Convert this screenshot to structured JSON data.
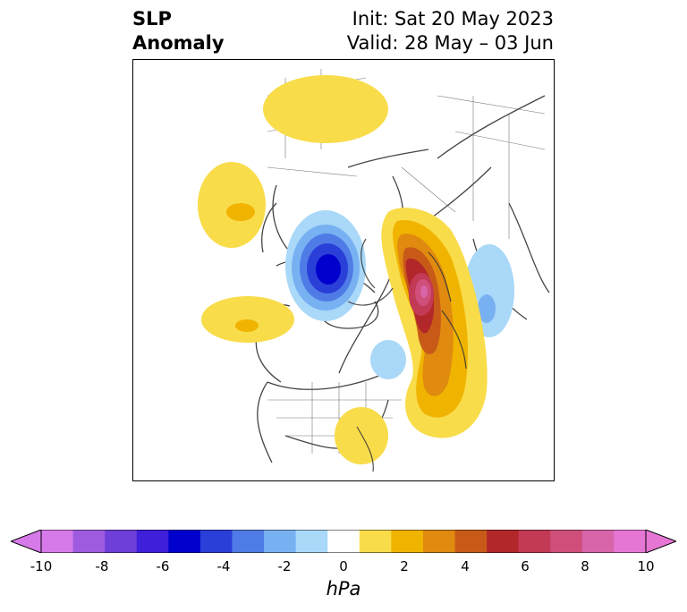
{
  "title": {
    "left_line1": "SLP",
    "left_line2": "Anomaly",
    "right_line1": "Init: Sat 20 May 2023",
    "right_line2": "Valid: 28 May – 03 Jun"
  },
  "colorbar": {
    "unit": "hPa",
    "ticks": [
      "-10",
      "-8",
      "-6",
      "-4",
      "-2",
      "0",
      "2",
      "4",
      "6",
      "8",
      "10"
    ],
    "colors": [
      "#d77ae9",
      "#9e5be0",
      "#6f3fd9",
      "#3f1fd9",
      "#0000cc",
      "#2a3fd8",
      "#4f7be6",
      "#78b1f2",
      "#a9d8f8",
      "#ffffff",
      "#f9dc4a",
      "#f0b400",
      "#e08a10",
      "#c85a18",
      "#b2282a",
      "#c23a55",
      "#cf4f7a",
      "#d865aa",
      "#e676d4"
    ],
    "extend_low_color": "#d77ae9",
    "extend_high_color": "#e676d4"
  },
  "map": {
    "projection": "polar",
    "anomalies": [
      {
        "sign": "positive",
        "peak_hPa": 10,
        "region": "north-atlantic-europe"
      },
      {
        "sign": "negative",
        "peak_hPa": -7,
        "region": "arctic-canada"
      },
      {
        "sign": "positive",
        "peak_hPa": 3,
        "region": "eastern-siberia"
      },
      {
        "sign": "positive",
        "peak_hPa": 3,
        "region": "north-pacific"
      },
      {
        "sign": "negative",
        "peak_hPa": -3,
        "region": "western-siberia"
      },
      {
        "sign": "negative",
        "peak_hPa": -2,
        "region": "northeast-canada"
      },
      {
        "sign": "positive",
        "peak_hPa": 3,
        "region": "eastern-usa"
      }
    ]
  }
}
